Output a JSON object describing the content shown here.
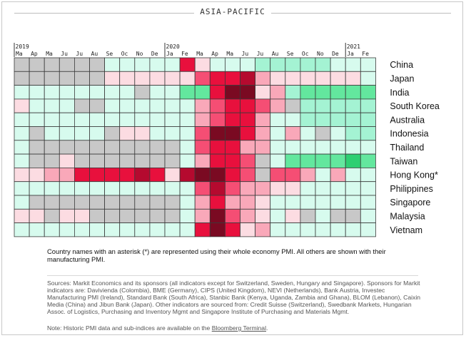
{
  "title": "ASIA-PACIFIC",
  "chart_data": {
    "type": "heatmap",
    "year_labels": [
      {
        "text": "2019",
        "col": 0
      },
      {
        "text": "2020",
        "col": 10
      },
      {
        "text": "2021",
        "col": 22
      }
    ],
    "months": [
      "Ma",
      "Ap",
      "Ma",
      "Ju",
      "Ju",
      "Au",
      "Se",
      "Oc",
      "No",
      "De",
      "Ja",
      "Fe",
      "Ma",
      "Ap",
      "Ma",
      "Ju",
      "Ju",
      "Au",
      "Se",
      "Oc",
      "No",
      "De",
      "Ja",
      "Fe"
    ],
    "countries": [
      "China",
      "Japan",
      "India",
      "South Korea",
      "Australia",
      "Indonesia",
      "Thailand",
      "Taiwan",
      "Hong Kong*",
      "Philippines",
      "Singapore",
      "Malaysia",
      "Vietnam"
    ],
    "legend_key": {
      "0": "#c8c8c8",
      "1": "#d7fbee",
      "2": "#a4f3d3",
      "3": "#63e79e",
      "4": "#2ecf72",
      "-1": "#fcdce2",
      "-2": "#f9a8b9",
      "-3": "#f54e74",
      "-4": "#e8103d",
      "-5": "#b50a2f",
      "-6": "#7a0a22"
    },
    "matrix": [
      [
        0,
        0,
        0,
        0,
        0,
        0,
        1,
        1,
        1,
        1,
        1,
        -4,
        -1,
        1,
        1,
        1,
        2,
        2,
        2,
        2,
        2,
        1,
        1,
        1
      ],
      [
        0,
        0,
        0,
        0,
        0,
        0,
        -1,
        -1,
        -1,
        -1,
        -1,
        -1,
        -3,
        -4,
        -4,
        -5,
        -2,
        -1,
        -1,
        -1,
        -1,
        -1,
        -1,
        1
      ],
      [
        1,
        1,
        1,
        1,
        1,
        1,
        1,
        1,
        0,
        1,
        1,
        3,
        3,
        -4,
        -6,
        -6,
        -1,
        -2,
        2,
        3,
        3,
        3,
        3,
        3
      ],
      [
        -1,
        1,
        1,
        1,
        0,
        0,
        1,
        1,
        1,
        1,
        1,
        1,
        -2,
        -3,
        -4,
        -4,
        -3,
        -2,
        0,
        2,
        2,
        2,
        2,
        2
      ],
      [
        1,
        1,
        1,
        1,
        1,
        1,
        1,
        1,
        1,
        1,
        1,
        1,
        -2,
        -3,
        -4,
        -4,
        -2,
        1,
        1,
        2,
        2,
        2,
        2,
        2
      ],
      [
        1,
        0,
        1,
        1,
        1,
        1,
        0,
        -1,
        -1,
        1,
        1,
        1,
        -3,
        -6,
        -6,
        -4,
        -2,
        1,
        -2,
        1,
        0,
        1,
        2,
        2
      ],
      [
        1,
        0,
        0,
        0,
        0,
        0,
        0,
        0,
        0,
        0,
        0,
        1,
        -3,
        -4,
        -4,
        -2,
        -2,
        1,
        1,
        1,
        1,
        1,
        1,
        1
      ],
      [
        1,
        0,
        0,
        -1,
        0,
        0,
        0,
        0,
        0,
        0,
        0,
        1,
        -2,
        -4,
        -4,
        -3,
        0,
        1,
        3,
        3,
        3,
        3,
        4,
        3
      ],
      [
        -1,
        -1,
        -2,
        -2,
        -4,
        -4,
        -4,
        -4,
        -5,
        -4,
        -1,
        -5,
        -6,
        -6,
        -4,
        -3,
        0,
        -3,
        -3,
        -2,
        1,
        -2,
        1,
        1
      ],
      [
        1,
        1,
        1,
        1,
        1,
        1,
        1,
        1,
        1,
        1,
        1,
        1,
        -3,
        -5,
        -3,
        -2,
        -2,
        -1,
        -1,
        1,
        1,
        1,
        1,
        1
      ],
      [
        1,
        0,
        0,
        0,
        0,
        0,
        0,
        0,
        0,
        0,
        0,
        1,
        -2,
        -4,
        -2,
        -2,
        -1,
        1,
        1,
        1,
        1,
        1,
        1,
        1
      ],
      [
        -1,
        -1,
        0,
        -1,
        -1,
        0,
        0,
        0,
        0,
        0,
        0,
        1,
        -2,
        -6,
        -3,
        -2,
        -1,
        1,
        -1,
        0,
        1,
        0,
        0,
        1
      ],
      [
        1,
        1,
        1,
        1,
        1,
        1,
        1,
        1,
        1,
        1,
        1,
        1,
        -4,
        -6,
        -4,
        -1,
        -2,
        1,
        1,
        1,
        1,
        1,
        1,
        1
      ]
    ]
  },
  "note": "Country names with an asterisk (*) are represented using their whole economy PMI. All others are shown with their manufacturing PMI.",
  "sources": "Sources: Markit Economics and its sponsors (all indicators except for Switzerland, Sweden, Hungary and Singapore). Sponsors for Markit indicators are: Davivienda (Colombia), BME (Germany), CIPS (United Kingdom), NEVI (Netherlands), Bank Austria, Investec Manufacturing PMI (Ireland), Standard Bank (South Africa), Stanbic Bank (Kenya, Uganda, Zambia and Ghana), BLOM (Lebanon), Caixin Media (China) and Jibun Bank (Japan). Other indicators are sourced from: Credit Suisse (Switzerland), Swedbank Markets, Hungarian Assoc. of Logistics, Purchasing and Inventory Mgmt and Singapore Institute of Purchasing and Materials Mgmt.",
  "footnote": {
    "prefix": "Note: Historic PMI data and sub-indices are available on the ",
    "link": "Bloomberg Terminal",
    "suffix": "."
  }
}
